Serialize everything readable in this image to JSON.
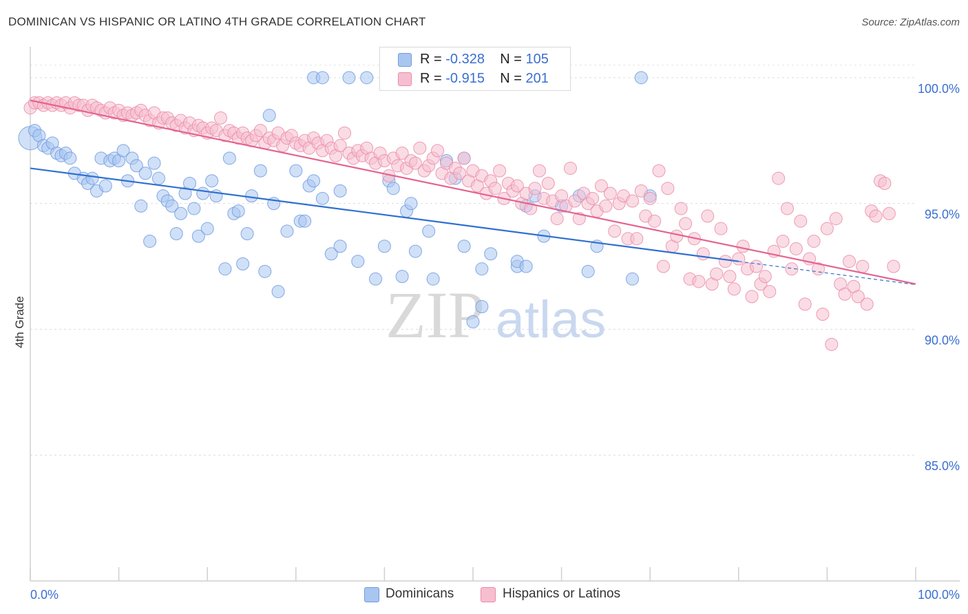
{
  "header": {
    "title": "DOMINICAN VS HISPANIC OR LATINO 4TH GRADE CORRELATION CHART",
    "source": "Source: ZipAtlas.com"
  },
  "watermark": {
    "zip": "ZIP",
    "atlas": "atlas"
  },
  "legend": {
    "r_label": "R = ",
    "n_label": "N = ",
    "rows": [
      {
        "r": "-0.328",
        "n": "105",
        "color": "#a9c6f0",
        "border": "#6f9ae0"
      },
      {
        "r": "-0.915",
        "n": "201",
        "color": "#f6bfd0",
        "border": "#ea8aa9"
      }
    ]
  },
  "chart_data": {
    "type": "scatter",
    "title": "DOMINICAN VS HISPANIC OR LATINO 4TH GRADE CORRELATION CHART",
    "xlabel": "",
    "ylabel": "4th Grade",
    "xlim": [
      0,
      100
    ],
    "ylim": [
      80,
      101.5
    ],
    "x_tick_labels": [
      "0.0%",
      "100.0%"
    ],
    "y_ticks": [
      85,
      90,
      95,
      100
    ],
    "y_tick_labels": [
      "85.0%",
      "90.0%",
      "95.0%",
      "100.0%"
    ],
    "grid": true,
    "legend_position": "bottom",
    "series": [
      {
        "name": "Dominicans",
        "color": "#6f9ae0",
        "fill": "#a9c6f0",
        "trend": {
          "x0": 0,
          "y0": 96.4,
          "x1": 80,
          "y1": 92.7,
          "dash_to": 100
        },
        "points": [
          [
            0,
            97.6
          ],
          [
            0.5,
            97.9
          ],
          [
            1,
            97.7
          ],
          [
            1.5,
            97.3
          ],
          [
            2,
            97.2
          ],
          [
            2.5,
            97.4
          ],
          [
            3,
            97.0
          ],
          [
            3.5,
            96.9
          ],
          [
            4,
            97.0
          ],
          [
            4.5,
            96.8
          ],
          [
            5,
            96.2
          ],
          [
            6,
            96.0
          ],
          [
            6.5,
            95.8
          ],
          [
            7,
            96.0
          ],
          [
            7.5,
            95.5
          ],
          [
            8,
            96.8
          ],
          [
            8.5,
            95.7
          ],
          [
            9,
            96.7
          ],
          [
            9.5,
            96.8
          ],
          [
            10,
            96.7
          ],
          [
            10.5,
            97.1
          ],
          [
            11,
            95.9
          ],
          [
            11.5,
            96.8
          ],
          [
            12,
            96.5
          ],
          [
            12.5,
            94.9
          ],
          [
            13,
            96.2
          ],
          [
            13.5,
            93.5
          ],
          [
            14,
            96.6
          ],
          [
            14.5,
            96.0
          ],
          [
            15,
            95.3
          ],
          [
            15.5,
            95.1
          ],
          [
            16,
            94.9
          ],
          [
            16.5,
            93.8
          ],
          [
            17,
            94.6
          ],
          [
            17.5,
            95.4
          ],
          [
            18,
            95.8
          ],
          [
            18.5,
            94.8
          ],
          [
            19,
            93.7
          ],
          [
            19.5,
            95.4
          ],
          [
            20,
            94.0
          ],
          [
            20.5,
            95.9
          ],
          [
            21,
            95.3
          ],
          [
            22,
            92.4
          ],
          [
            22.5,
            96.8
          ],
          [
            23,
            94.6
          ],
          [
            23.5,
            94.7
          ],
          [
            24,
            92.6
          ],
          [
            24.5,
            93.8
          ],
          [
            25,
            95.3
          ],
          [
            26,
            96.3
          ],
          [
            26.5,
            92.3
          ],
          [
            27,
            98.5
          ],
          [
            27.5,
            95.0
          ],
          [
            28,
            91.5
          ],
          [
            29,
            93.9
          ],
          [
            30,
            96.3
          ],
          [
            30.5,
            94.3
          ],
          [
            31,
            94.3
          ],
          [
            31.5,
            95.7
          ],
          [
            32,
            95.9
          ],
          [
            32,
            100
          ],
          [
            33,
            100
          ],
          [
            33,
            95.2
          ],
          [
            34,
            93.0
          ],
          [
            35,
            95.5
          ],
          [
            35,
            93.3
          ],
          [
            36,
            100
          ],
          [
            37,
            92.7
          ],
          [
            38,
            100
          ],
          [
            39,
            92.0
          ],
          [
            40,
            93.3
          ],
          [
            40.5,
            95.9
          ],
          [
            41,
            95.6
          ],
          [
            42,
            92.1
          ],
          [
            42.5,
            94.7
          ],
          [
            43,
            95.0
          ],
          [
            43.5,
            93.1
          ],
          [
            44,
            100
          ],
          [
            45,
            93.9
          ],
          [
            45.5,
            92.0
          ],
          [
            47,
            96.7
          ],
          [
            48,
            96.0
          ],
          [
            49,
            96.8
          ],
          [
            49,
            93.3
          ],
          [
            50,
            90.3
          ],
          [
            51,
            92.4
          ],
          [
            51,
            90.9
          ],
          [
            52,
            93.0
          ],
          [
            55,
            92.5
          ],
          [
            55,
            92.7
          ],
          [
            56,
            94.9
          ],
          [
            56,
            92.5
          ],
          [
            57,
            95.3
          ],
          [
            58,
            93.7
          ],
          [
            60,
            94.9
          ],
          [
            62,
            95.3
          ],
          [
            63,
            92.3
          ],
          [
            64,
            93.3
          ],
          [
            68,
            92.0
          ],
          [
            69,
            100
          ],
          [
            70,
            95.3
          ]
        ]
      },
      {
        "name": "Hispanics or Latinos",
        "color": "#ea8aa9",
        "fill": "#f6bfd0",
        "trend": {
          "x0": 0,
          "y0": 99.1,
          "x1": 100,
          "y1": 91.8
        },
        "points": [
          [
            0,
            98.8
          ],
          [
            0.5,
            99.0
          ],
          [
            1,
            99.0
          ],
          [
            1.5,
            98.9
          ],
          [
            2,
            99.0
          ],
          [
            2.5,
            98.9
          ],
          [
            3,
            99.0
          ],
          [
            3.5,
            98.9
          ],
          [
            4,
            99.0
          ],
          [
            4.5,
            98.8
          ],
          [
            5,
            99.0
          ],
          [
            5.5,
            98.9
          ],
          [
            6,
            98.9
          ],
          [
            6.5,
            98.7
          ],
          [
            7,
            98.9
          ],
          [
            7.5,
            98.8
          ],
          [
            8,
            98.7
          ],
          [
            8.5,
            98.6
          ],
          [
            9,
            98.8
          ],
          [
            9.5,
            98.6
          ],
          [
            10,
            98.7
          ],
          [
            10.5,
            98.5
          ],
          [
            11,
            98.6
          ],
          [
            11.5,
            98.5
          ],
          [
            12,
            98.6
          ],
          [
            12.5,
            98.7
          ],
          [
            13,
            98.5
          ],
          [
            13.5,
            98.3
          ],
          [
            14,
            98.6
          ],
          [
            14.5,
            98.2
          ],
          [
            15,
            98.4
          ],
          [
            15.5,
            98.4
          ],
          [
            16,
            98.2
          ],
          [
            16.5,
            98.1
          ],
          [
            17,
            98.3
          ],
          [
            17.5,
            98.0
          ],
          [
            18,
            98.2
          ],
          [
            18.5,
            97.9
          ],
          [
            19,
            98.1
          ],
          [
            19.5,
            98.0
          ],
          [
            20,
            97.8
          ],
          [
            20.5,
            98.0
          ],
          [
            21,
            97.9
          ],
          [
            21.5,
            98.4
          ],
          [
            22,
            97.7
          ],
          [
            22.5,
            97.9
          ],
          [
            23,
            97.8
          ],
          [
            23.5,
            97.6
          ],
          [
            24,
            97.8
          ],
          [
            24.5,
            97.6
          ],
          [
            25,
            97.5
          ],
          [
            25.5,
            97.7
          ],
          [
            26,
            97.9
          ],
          [
            26.5,
            97.4
          ],
          [
            27,
            97.6
          ],
          [
            27.5,
            97.5
          ],
          [
            28,
            97.8
          ],
          [
            28.5,
            97.3
          ],
          [
            29,
            97.6
          ],
          [
            29.5,
            97.7
          ],
          [
            30,
            97.4
          ],
          [
            30.5,
            97.3
          ],
          [
            31,
            97.5
          ],
          [
            31.5,
            97.2
          ],
          [
            32,
            97.6
          ],
          [
            32.5,
            97.4
          ],
          [
            33,
            97.1
          ],
          [
            33.5,
            97.5
          ],
          [
            34,
            97.2
          ],
          [
            34.5,
            96.9
          ],
          [
            35,
            97.3
          ],
          [
            35.5,
            97.8
          ],
          [
            36,
            97.0
          ],
          [
            36.5,
            96.8
          ],
          [
            37,
            97.1
          ],
          [
            37.5,
            96.9
          ],
          [
            38,
            97.2
          ],
          [
            38.5,
            96.8
          ],
          [
            39,
            96.6
          ],
          [
            39.5,
            97.0
          ],
          [
            40,
            96.7
          ],
          [
            40.5,
            96.1
          ],
          [
            41,
            96.8
          ],
          [
            41.5,
            96.5
          ],
          [
            42,
            97.0
          ],
          [
            42.5,
            96.4
          ],
          [
            43,
            96.7
          ],
          [
            43.5,
            96.6
          ],
          [
            44,
            97.2
          ],
          [
            44.5,
            96.3
          ],
          [
            45,
            96.5
          ],
          [
            45.5,
            96.8
          ],
          [
            46,
            97.1
          ],
          [
            46.5,
            96.2
          ],
          [
            47,
            96.6
          ],
          [
            47.5,
            96.0
          ],
          [
            48,
            96.4
          ],
          [
            48.5,
            96.2
          ],
          [
            49,
            96.8
          ],
          [
            49.5,
            95.9
          ],
          [
            50,
            96.3
          ],
          [
            50.5,
            95.7
          ],
          [
            51,
            96.1
          ],
          [
            51.5,
            95.4
          ],
          [
            52,
            95.9
          ],
          [
            52.5,
            95.6
          ],
          [
            53,
            96.3
          ],
          [
            53.5,
            95.2
          ],
          [
            54,
            95.8
          ],
          [
            54.5,
            95.5
          ],
          [
            55,
            95.7
          ],
          [
            55.5,
            95.0
          ],
          [
            56,
            95.4
          ],
          [
            56.5,
            94.8
          ],
          [
            57,
            95.6
          ],
          [
            57.5,
            96.3
          ],
          [
            58,
            95.2
          ],
          [
            58.5,
            95.8
          ],
          [
            59,
            95.1
          ],
          [
            59.5,
            94.4
          ],
          [
            60,
            95.3
          ],
          [
            60.5,
            94.9
          ],
          [
            61,
            96.4
          ],
          [
            61.5,
            95.1
          ],
          [
            62,
            94.4
          ],
          [
            62.5,
            95.4
          ],
          [
            63,
            95.0
          ],
          [
            63.5,
            95.2
          ],
          [
            64,
            94.7
          ],
          [
            64.5,
            95.7
          ],
          [
            65,
            94.9
          ],
          [
            65.5,
            95.4
          ],
          [
            66,
            93.9
          ],
          [
            66.5,
            95.0
          ],
          [
            67,
            95.3
          ],
          [
            67.5,
            93.6
          ],
          [
            68,
            95.1
          ],
          [
            68.5,
            93.6
          ],
          [
            69,
            95.5
          ],
          [
            69.5,
            94.5
          ],
          [
            70,
            95.2
          ],
          [
            70.5,
            94.3
          ],
          [
            71,
            96.3
          ],
          [
            71.5,
            92.5
          ],
          [
            72,
            95.6
          ],
          [
            72.5,
            93.3
          ],
          [
            73,
            93.7
          ],
          [
            73.5,
            94.8
          ],
          [
            74,
            94.2
          ],
          [
            74.5,
            92.0
          ],
          [
            75,
            93.6
          ],
          [
            75.5,
            91.9
          ],
          [
            76,
            93.0
          ],
          [
            76.5,
            94.5
          ],
          [
            77,
            91.8
          ],
          [
            77.5,
            92.2
          ],
          [
            78,
            94.0
          ],
          [
            78.5,
            92.7
          ],
          [
            79,
            92.1
          ],
          [
            79.5,
            91.6
          ],
          [
            80,
            92.8
          ],
          [
            80.5,
            93.3
          ],
          [
            81,
            92.4
          ],
          [
            81.5,
            91.3
          ],
          [
            82,
            92.5
          ],
          [
            82.5,
            91.8
          ],
          [
            83,
            92.1
          ],
          [
            83.5,
            91.5
          ],
          [
            84,
            93.1
          ],
          [
            84.5,
            96.0
          ],
          [
            85,
            93.5
          ],
          [
            85.5,
            94.8
          ],
          [
            86,
            92.4
          ],
          [
            86.5,
            93.2
          ],
          [
            87,
            94.3
          ],
          [
            87.5,
            91.0
          ],
          [
            88,
            92.8
          ],
          [
            88.5,
            93.5
          ],
          [
            89,
            92.4
          ],
          [
            89.5,
            90.6
          ],
          [
            90,
            94.0
          ],
          [
            90.5,
            89.4
          ],
          [
            91,
            94.4
          ],
          [
            91.5,
            91.8
          ],
          [
            92,
            91.4
          ],
          [
            92.5,
            92.7
          ],
          [
            93,
            91.7
          ],
          [
            93.5,
            91.3
          ],
          [
            94,
            92.5
          ],
          [
            94.5,
            91.0
          ],
          [
            95,
            94.7
          ],
          [
            95.5,
            94.5
          ],
          [
            96,
            95.9
          ],
          [
            96.5,
            95.8
          ],
          [
            97,
            94.6
          ],
          [
            97.5,
            92.5
          ]
        ]
      }
    ]
  }
}
